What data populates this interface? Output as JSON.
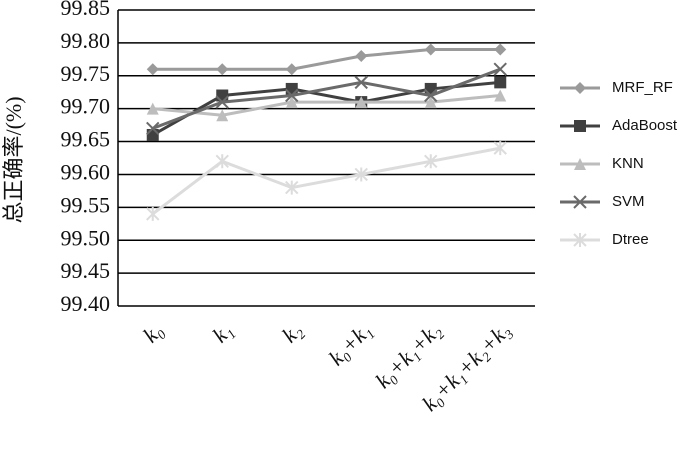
{
  "chart_data": {
    "type": "line",
    "y_label": "总正确率/(%)",
    "categories": [
      "k₀",
      "k₁",
      "k₂",
      "k₀+k₁",
      "k₀+k₁+k₂",
      "k₀+k₁+k₂+k₃"
    ],
    "series": [
      {
        "name": "MRF_RF",
        "color": "#9a9a9a",
        "marker": "diamond",
        "values": [
          99.76,
          99.76,
          99.76,
          99.78,
          99.79,
          99.79
        ]
      },
      {
        "name": "AdaBoost",
        "color": "#404040",
        "marker": "square",
        "values": [
          99.66,
          99.72,
          99.73,
          99.71,
          99.73,
          99.74
        ]
      },
      {
        "name": "KNN",
        "color": "#bdbdbd",
        "marker": "triangle",
        "values": [
          99.7,
          99.69,
          99.71,
          99.71,
          99.71,
          99.72
        ]
      },
      {
        "name": "SVM",
        "color": "#6a6a6a",
        "marker": "x",
        "values": [
          99.67,
          99.71,
          99.72,
          99.74,
          99.72,
          99.76
        ]
      },
      {
        "name": "Dtree",
        "color": "#dcdcdc",
        "marker": "asterisk",
        "values": [
          99.54,
          99.62,
          99.58,
          99.6,
          99.62,
          99.64
        ]
      }
    ],
    "ylim": [
      99.4,
      99.85
    ],
    "yticks": [
      {
        "value": 99.4,
        "label": "99.40"
      },
      99.45,
      {
        "value": 99.5,
        "label": "99.50"
      },
      99.55,
      {
        "value": 99.6,
        "label": "99.60"
      },
      99.65,
      {
        "value": 99.7,
        "label": "99.70"
      },
      99.75,
      {
        "value": 99.8,
        "label": "99.80"
      },
      99.85
    ],
    "grid": true,
    "legend": "right"
  }
}
